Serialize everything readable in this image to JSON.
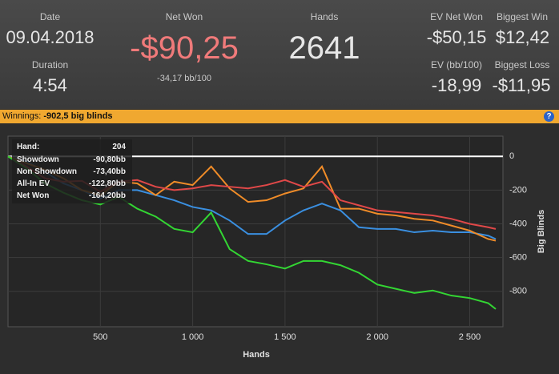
{
  "header": {
    "date_label": "Date",
    "date": "09.04.2018",
    "duration_label": "Duration",
    "duration": "4:54",
    "net_won_label": "Net Won",
    "net_won": "-$90,25",
    "bb_per_100": "-34,17 bb/100",
    "hands_label": "Hands",
    "hands": "2641",
    "ev_net_won_label": "EV Net Won",
    "ev_net_won": "-$50,15",
    "biggest_win_label": "Biggest Win",
    "biggest_win": "$12,42",
    "ev_bb_label": "EV (bb/100)",
    "ev_bb": "-18,99",
    "biggest_loss_label": "Biggest Loss",
    "biggest_loss": "-$11,95"
  },
  "banner": {
    "label": "Winnings:",
    "value": "-902,5 big blinds",
    "help": "?"
  },
  "tooltip": {
    "hand_label": "Hand:",
    "hand": "204",
    "rows": [
      [
        "Showdown",
        "-90,80bb"
      ],
      [
        "Non Showdown",
        "-73,40bb"
      ],
      [
        "All-In EV",
        "-122,80bb"
      ],
      [
        "Net Won",
        "-164,20bb"
      ]
    ]
  },
  "chart_data": {
    "type": "line",
    "xlabel": "Hands",
    "ylabel": "Big Blinds",
    "x": [
      0,
      100,
      200,
      300,
      400,
      500,
      600,
      700,
      800,
      900,
      1000,
      1100,
      1200,
      1300,
      1400,
      1500,
      1600,
      1700,
      1800,
      1900,
      2000,
      2100,
      2200,
      2300,
      2400,
      2500,
      2600,
      2641
    ],
    "series": [
      {
        "name": "Showdown",
        "color": "#3a8fe0",
        "values": [
          0,
          -30,
          -90,
          -160,
          -200,
          -250,
          -200,
          -200,
          -230,
          -260,
          -300,
          -320,
          -380,
          -460,
          -460,
          -380,
          -320,
          -280,
          -320,
          -420,
          -430,
          -430,
          -450,
          -440,
          -450,
          -450,
          -470,
          -490
        ]
      },
      {
        "name": "Non Showdown",
        "color": "#f08c28",
        "values": [
          0,
          -40,
          -80,
          -130,
          -200,
          -230,
          -150,
          -160,
          -230,
          -150,
          -170,
          -60,
          -190,
          -270,
          -260,
          -220,
          -190,
          -60,
          -310,
          -310,
          -340,
          -350,
          -370,
          -380,
          -410,
          -440,
          -490,
          -500
        ]
      },
      {
        "name": "All-In EV",
        "color": "#e04848",
        "values": [
          0,
          -60,
          -130,
          -150,
          -145,
          -210,
          -150,
          -140,
          -180,
          -200,
          -190,
          -170,
          -180,
          -190,
          -170,
          -140,
          -180,
          -150,
          -260,
          -290,
          -320,
          -330,
          -340,
          -350,
          -370,
          -400,
          -420,
          -430
        ]
      },
      {
        "name": "Net Won",
        "color": "#33d633",
        "values": [
          0,
          -70,
          -160,
          -215,
          -260,
          -285,
          -240,
          -310,
          -357,
          -430,
          -450,
          -333,
          -550,
          -620,
          -640,
          -665,
          -620,
          -620,
          -645,
          -690,
          -760,
          -785,
          -810,
          -795,
          -825,
          -840,
          -870,
          -905
        ]
      }
    ],
    "xlim": [
      0,
      2680
    ],
    "ylim": [
      -1010,
      120
    ],
    "xticks": [
      500,
      {
        "value": 1000,
        "label": "1 000"
      },
      {
        "value": 1500,
        "label": "1 500"
      },
      {
        "value": 2000,
        "label": "2 000"
      },
      {
        "value": 2500,
        "label": "2 500"
      }
    ],
    "yticks": [
      0,
      -200,
      -400,
      -600,
      -800
    ],
    "grid": true
  }
}
